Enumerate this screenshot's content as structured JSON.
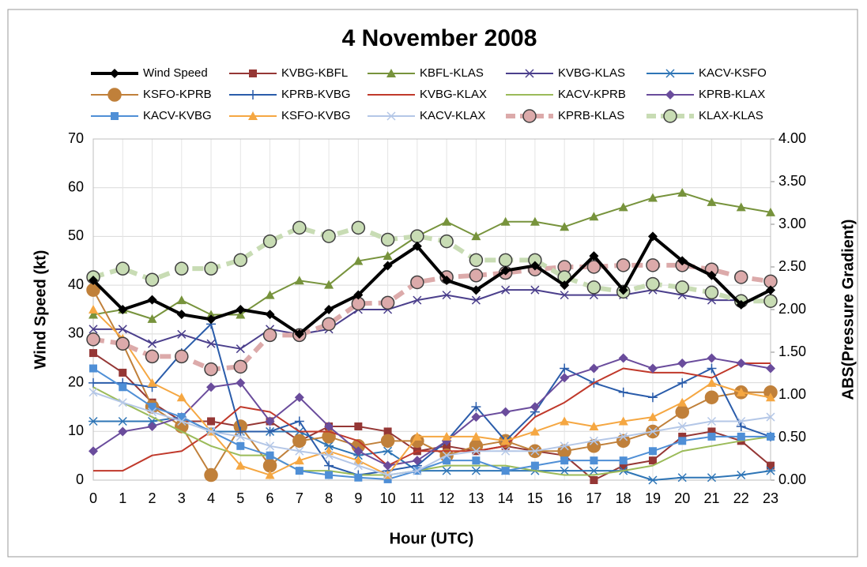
{
  "chart_data": {
    "type": "line",
    "title": "4 November 2008",
    "x_label": "Hour (UTC)",
    "y_label": "Wind Speed (kt)",
    "y2_label": "ABS(Pressure Gradient)",
    "x": [
      0,
      1,
      2,
      3,
      4,
      5,
      6,
      7,
      8,
      9,
      10,
      11,
      12,
      13,
      14,
      15,
      16,
      17,
      18,
      19,
      20,
      21,
      22,
      23
    ],
    "xlim": [
      0,
      23
    ],
    "xticks": [
      0,
      1,
      2,
      3,
      4,
      5,
      6,
      7,
      8,
      9,
      10,
      11,
      12,
      13,
      14,
      15,
      16,
      17,
      18,
      19,
      20,
      21,
      22,
      23
    ],
    "ylim": [
      0,
      70
    ],
    "yticks": [
      0,
      10,
      20,
      30,
      40,
      50,
      60,
      70
    ],
    "y2lim": [
      0,
      4
    ],
    "y2ticks": [
      {
        "value": 0,
        "label": "0.00"
      },
      {
        "value": 0.5,
        "label": "0.50"
      },
      {
        "value": 1,
        "label": "1.00"
      },
      {
        "value": 1.5,
        "label": "1.50"
      },
      {
        "value": 2,
        "label": "2.00"
      },
      {
        "value": 2.5,
        "label": "2.50"
      },
      {
        "value": 3,
        "label": "3.00"
      },
      {
        "value": 3.5,
        "label": "3.50"
      },
      {
        "value": 4,
        "label": "4.00"
      }
    ],
    "grid": true,
    "series": [
      {
        "name": "Wind Speed",
        "color": "#000000",
        "marker": "diamond",
        "line_width": 4,
        "values": [
          41,
          35,
          37,
          34,
          33,
          35,
          34,
          30,
          35,
          38,
          44,
          48,
          41,
          39,
          43,
          44,
          40,
          46,
          39,
          50,
          45,
          42,
          36,
          39
        ]
      },
      {
        "name": "KVBG-KBFL",
        "color": "#953735",
        "marker": "square",
        "axis": "y2",
        "values": [
          1.49,
          1.26,
          0.91,
          0.69,
          0.69,
          0.63,
          0.69,
          0.46,
          0.63,
          0.63,
          0.57,
          0.34,
          0.4,
          0.34,
          0.4,
          0.34,
          0.29,
          0.0,
          0.17,
          0.23,
          0.51,
          0.57,
          0.46,
          0.17
        ]
      },
      {
        "name": "KBFL-KLAS",
        "color": "#77933c",
        "marker": "triangle",
        "axis": "y2",
        "values": [
          1.94,
          2.0,
          1.89,
          2.11,
          1.94,
          1.94,
          2.17,
          2.34,
          2.29,
          2.57,
          2.63,
          2.86,
          3.03,
          2.86,
          3.03,
          3.03,
          2.97,
          3.09,
          3.2,
          3.31,
          3.37,
          3.26,
          3.2,
          3.14
        ]
      },
      {
        "name": "KVBG-KLAS",
        "color": "#4b3f8c",
        "marker": "x",
        "axis": "y2",
        "values": [
          1.77,
          1.77,
          1.6,
          1.71,
          1.6,
          1.54,
          1.77,
          1.71,
          1.77,
          2.0,
          2.0,
          2.11,
          2.17,
          2.11,
          2.23,
          2.23,
          2.17,
          2.17,
          2.17,
          2.23,
          2.17,
          2.11,
          2.11,
          2.11
        ]
      },
      {
        "name": "KACV-KSFO",
        "color": "#2e75b6",
        "marker": "asterisk",
        "axis": "y2",
        "values": [
          0.69,
          0.69,
          0.69,
          0.74,
          0.57,
          0.57,
          0.57,
          0.57,
          0.4,
          0.29,
          0.34,
          0.11,
          0.11,
          0.11,
          0.11,
          0.11,
          0.11,
          0.11,
          0.11,
          0.0,
          0.03,
          0.03,
          0.06,
          0.11
        ]
      },
      {
        "name": "KSFO-KPRB",
        "color": "#c0803a",
        "marker": "circle",
        "axis": "y2",
        "values": [
          2.23,
          1.6,
          0.86,
          0.63,
          0.06,
          0.63,
          0.17,
          0.46,
          0.51,
          0.4,
          0.46,
          0.46,
          0.29,
          0.4,
          0.46,
          0.34,
          0.34,
          0.4,
          0.46,
          0.57,
          0.8,
          0.97,
          1.03,
          1.03
        ]
      },
      {
        "name": "KPRB-KVBG",
        "color": "#2a5caa",
        "marker": "plus",
        "axis": "y2",
        "values": [
          1.14,
          1.14,
          1.09,
          1.49,
          1.83,
          0.57,
          0.57,
          0.69,
          0.17,
          0.06,
          0.11,
          0.17,
          0.46,
          0.86,
          0.46,
          0.8,
          1.31,
          1.14,
          1.03,
          0.97,
          1.14,
          1.31,
          0.63,
          0.51
        ]
      },
      {
        "name": "KVBG-KLAX",
        "color": "#c0392b",
        "marker": "none",
        "axis": "y2",
        "values": [
          0.11,
          0.11,
          0.29,
          0.34,
          0.57,
          0.86,
          0.8,
          0.57,
          0.57,
          0.46,
          0.17,
          0.34,
          0.34,
          0.34,
          0.4,
          0.74,
          0.91,
          1.14,
          1.31,
          1.26,
          1.26,
          1.2,
          1.37,
          1.37
        ]
      },
      {
        "name": "KACV-KPRB",
        "color": "#9bbb59",
        "marker": "none",
        "axis": "y2",
        "values": [
          1.09,
          0.91,
          0.74,
          0.57,
          0.4,
          0.29,
          0.29,
          0.11,
          0.11,
          0.06,
          0.06,
          0.11,
          0.17,
          0.17,
          0.17,
          0.11,
          0.06,
          0.06,
          0.11,
          0.17,
          0.34,
          0.4,
          0.46,
          0.51
        ]
      },
      {
        "name": "KPRB-KLAX",
        "color": "#6a4c9c",
        "marker": "diamond",
        "axis": "y2",
        "values": [
          0.34,
          0.57,
          0.63,
          0.74,
          1.09,
          1.14,
          0.69,
          0.97,
          0.63,
          0.34,
          0.17,
          0.23,
          0.46,
          0.74,
          0.8,
          0.86,
          1.2,
          1.31,
          1.43,
          1.31,
          1.37,
          1.43,
          1.37,
          1.31
        ]
      },
      {
        "name": "KACV-KVBG",
        "color": "#4f8fd6",
        "marker": "square",
        "axis": "y2",
        "values": [
          1.31,
          1.09,
          0.86,
          0.74,
          0.57,
          0.4,
          0.29,
          0.11,
          0.06,
          0.03,
          0.01,
          0.11,
          0.23,
          0.23,
          0.11,
          0.17,
          0.23,
          0.23,
          0.23,
          0.34,
          0.46,
          0.51,
          0.51,
          0.51
        ]
      },
      {
        "name": "KSFO-KVBG",
        "color": "#f5a742",
        "marker": "triangle",
        "axis": "y2",
        "values": [
          2.0,
          1.66,
          1.14,
          0.97,
          0.57,
          0.17,
          0.06,
          0.23,
          0.34,
          0.23,
          0.06,
          0.51,
          0.51,
          0.51,
          0.46,
          0.57,
          0.69,
          0.63,
          0.69,
          0.74,
          0.91,
          1.14,
          1.03,
          0.97
        ]
      },
      {
        "name": "KACV-KLAX",
        "color": "#b4c7e7",
        "marker": "x",
        "axis": "y2",
        "values": [
          1.03,
          0.91,
          0.8,
          0.69,
          0.57,
          0.51,
          0.4,
          0.34,
          0.29,
          0.17,
          0.06,
          0.11,
          0.29,
          0.34,
          0.34,
          0.34,
          0.4,
          0.46,
          0.51,
          0.57,
          0.63,
          0.69,
          0.69,
          0.74
        ]
      },
      {
        "name": "KPRB-KLAS",
        "color": "#dcaaaa",
        "marker": "circle",
        "marker_edge": "#404040",
        "dash": true,
        "line_width": 6,
        "axis": "y2",
        "values": [
          1.65,
          1.6,
          1.45,
          1.45,
          1.3,
          1.33,
          1.7,
          1.7,
          1.83,
          2.07,
          2.08,
          2.32,
          2.38,
          2.4,
          2.43,
          2.47,
          2.5,
          2.5,
          2.52,
          2.52,
          2.52,
          2.47,
          2.38,
          2.33
        ]
      },
      {
        "name": "KLAX-KLAS",
        "color": "#c8dcb4",
        "marker": "circle",
        "marker_edge": "#404040",
        "dash": true,
        "line_width": 6,
        "axis": "y2",
        "values": [
          2.38,
          2.48,
          2.35,
          2.48,
          2.48,
          2.58,
          2.8,
          2.96,
          2.86,
          2.96,
          2.82,
          2.86,
          2.8,
          2.58,
          2.58,
          2.58,
          2.38,
          2.26,
          2.21,
          2.3,
          2.26,
          2.2,
          2.1,
          2.1
        ]
      }
    ]
  }
}
